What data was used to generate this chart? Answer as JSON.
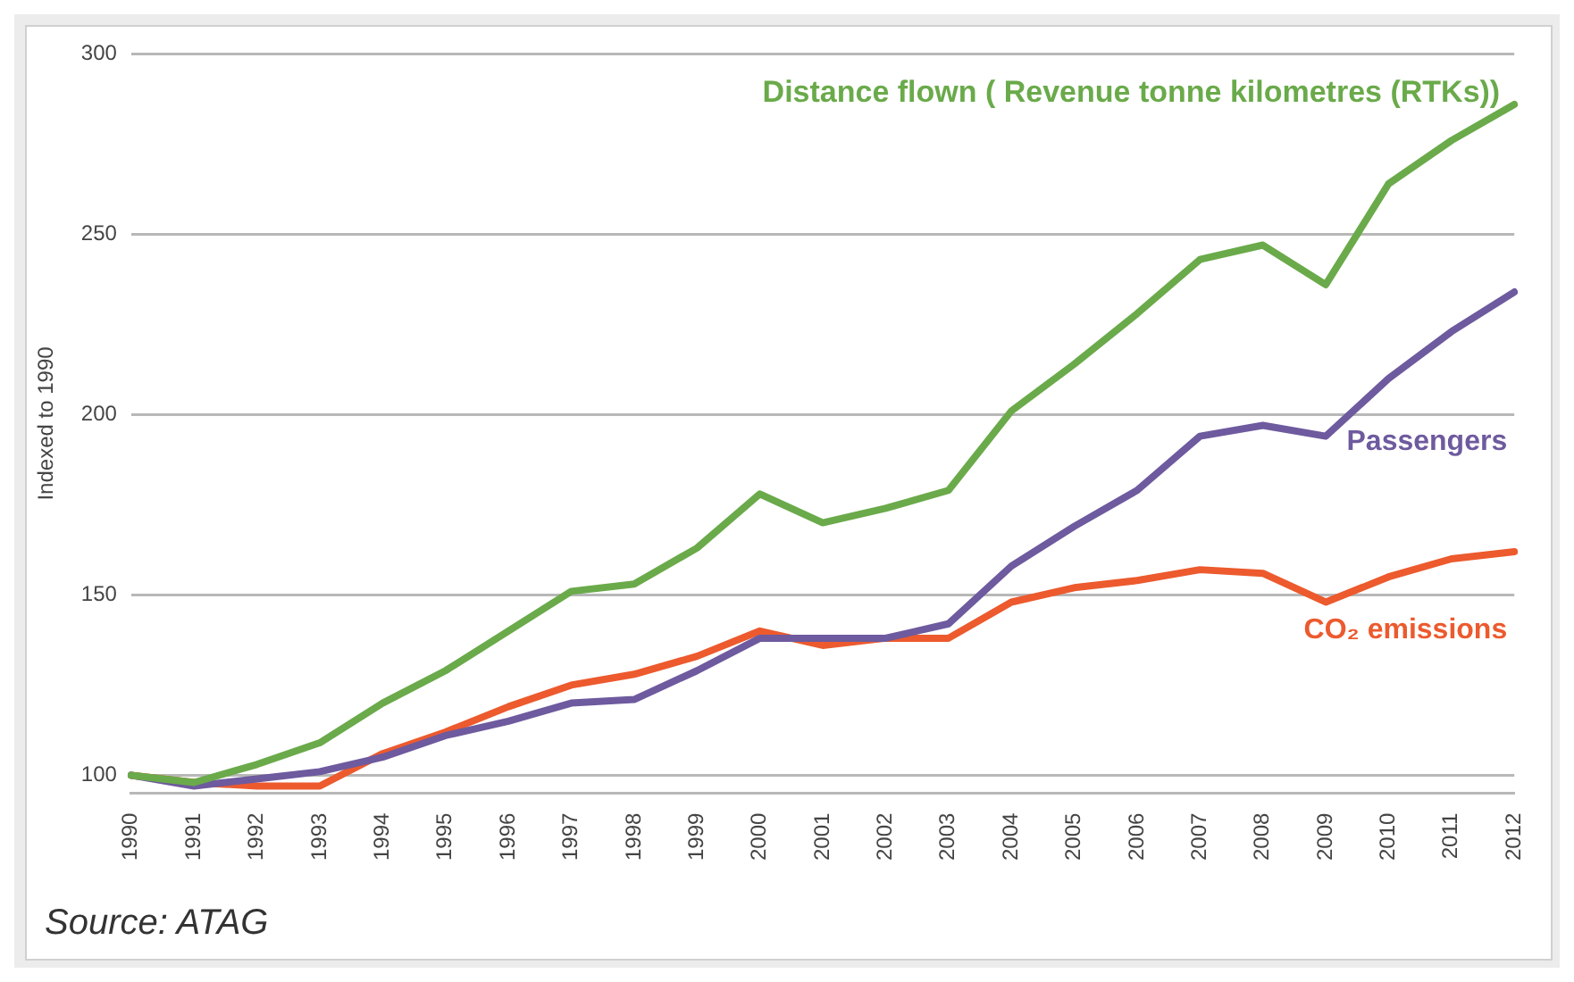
{
  "chart_data": {
    "type": "line",
    "categories": [
      "1990",
      "1991",
      "1992",
      "1993",
      "1994",
      "1995",
      "1996",
      "1997",
      "1998",
      "1999",
      "2000",
      "2001",
      "2002",
      "2003",
      "2004",
      "2005",
      "2006",
      "2007",
      "2008",
      "2009",
      "2010",
      "2011",
      "2012"
    ],
    "series": [
      {
        "name": "Distance flown ( Revenue tonne kilometres (RTKs))",
        "color": "#6aaa4a",
        "values": [
          100,
          98,
          103,
          109,
          120,
          129,
          140,
          151,
          153,
          163,
          178,
          170,
          174,
          179,
          201,
          214,
          228,
          243,
          247,
          236,
          264,
          276,
          286
        ]
      },
      {
        "name": "Passengers",
        "color": "#6e5a9e",
        "values": [
          100,
          97,
          99,
          101,
          105,
          111,
          115,
          120,
          121,
          129,
          138,
          138,
          138,
          142,
          158,
          169,
          179,
          194,
          197,
          194,
          210,
          223,
          234
        ]
      },
      {
        "name": "CO₂ emissions",
        "color": "#ec5a2e",
        "values": [
          100,
          98,
          97,
          97,
          106,
          112,
          119,
          125,
          128,
          133,
          140,
          136,
          138,
          138,
          148,
          152,
          154,
          157,
          156,
          148,
          155,
          160,
          162
        ]
      }
    ],
    "ylabel": "Indexed to 1990",
    "ylim": [
      95,
      300
    ],
    "yticks": [
      100,
      150,
      200,
      250,
      300
    ],
    "grid": "y",
    "legend": false,
    "marker": "none",
    "line_style": "solid",
    "annotations": [
      "Source: ATAG"
    ]
  }
}
